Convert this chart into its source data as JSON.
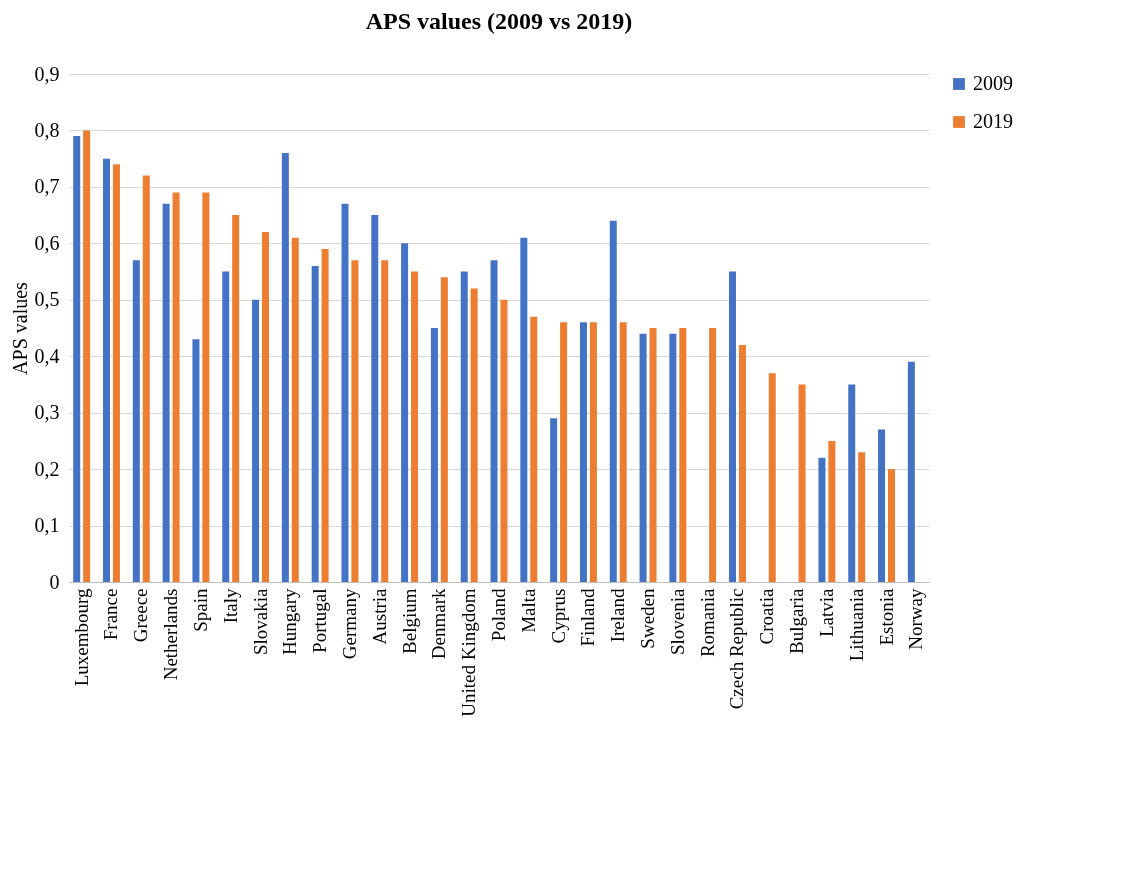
{
  "chart_data": {
    "type": "bar",
    "title": "APS values (2009 vs 2019)",
    "ylabel": "APS values",
    "categories": [
      "Luxembourg",
      "France",
      "Greece",
      "Netherlands",
      "Spain",
      "Italy",
      "Slovakia",
      "Hungary",
      "Portugal",
      "Germany",
      "Austria",
      "Belgium",
      "Denmark",
      "United Kingdom",
      "Poland",
      "Malta",
      "Cyprus",
      "Finland",
      "Ireland",
      "Sweden",
      "Slovenia",
      "Romania",
      "Czech Republic",
      "Croatia",
      "Bulgaria",
      "Latvia",
      "Lithuania",
      "Estonia",
      "Norway"
    ],
    "series": [
      {
        "name": "2009",
        "color": "#4472c4",
        "values": [
          0.79,
          0.75,
          0.57,
          0.67,
          0.43,
          0.55,
          0.5,
          0.76,
          0.56,
          0.67,
          0.65,
          0.6,
          0.45,
          0.55,
          0.57,
          0.61,
          0.29,
          0.46,
          0.64,
          0.44,
          0.44,
          null,
          0.55,
          null,
          null,
          0.22,
          0.35,
          0.27,
          0.39
        ]
      },
      {
        "name": "2019",
        "color": "#ed7d31",
        "values": [
          0.8,
          0.74,
          0.72,
          0.69,
          0.69,
          0.65,
          0.62,
          0.61,
          0.59,
          0.57,
          0.57,
          0.55,
          0.54,
          0.52,
          0.5,
          0.47,
          0.46,
          0.46,
          0.46,
          0.45,
          0.45,
          0.45,
          0.42,
          0.37,
          0.35,
          0.25,
          0.23,
          0.2,
          null
        ]
      }
    ],
    "ylim": [
      0,
      0.9
    ],
    "yticks": [
      0,
      {
        "value": 0.1,
        "label": "0,1"
      },
      {
        "value": 0.2,
        "label": "0,2"
      },
      {
        "value": 0.3,
        "label": "0,3"
      },
      {
        "value": 0.4,
        "label": "0,4"
      },
      {
        "value": 0.5,
        "label": "0,5"
      },
      {
        "value": 0.6,
        "label": "0,6"
      },
      {
        "value": 0.7,
        "label": "0,7"
      },
      {
        "value": 0.8,
        "label": "0,8"
      },
      {
        "value": 0.9,
        "label": "0,9"
      }
    ],
    "grid": "y",
    "legend": "right"
  }
}
